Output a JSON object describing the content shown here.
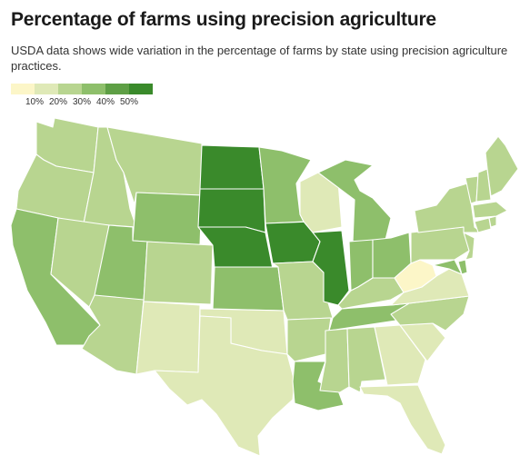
{
  "title": "Percentage of farms using precision agriculture",
  "subtitle": "USDA data shows wide variation in the percentage of farms by state using precision agriculture practices.",
  "legend": {
    "colors": [
      "#fcf6c8",
      "#dfe9b7",
      "#b8d590",
      "#8ebf6b",
      "#5e9f45",
      "#3a8a2b"
    ],
    "ticks": [
      "10%",
      "20%",
      "30%",
      "40%",
      "50%"
    ]
  },
  "map": {
    "states": [
      {
        "id": "WA",
        "value": 30
      },
      {
        "id": "OR",
        "value": 30
      },
      {
        "id": "CA",
        "value": 40
      },
      {
        "id": "ID",
        "value": 30
      },
      {
        "id": "NV",
        "value": 30
      },
      {
        "id": "MT",
        "value": 30
      },
      {
        "id": "WY",
        "value": 40
      },
      {
        "id": "UT",
        "value": 40
      },
      {
        "id": "AZ",
        "value": 30
      },
      {
        "id": "CO",
        "value": 30
      },
      {
        "id": "NM",
        "value": 20
      },
      {
        "id": "ND",
        "value": 50
      },
      {
        "id": "SD",
        "value": 50
      },
      {
        "id": "NE",
        "value": 50
      },
      {
        "id": "KS",
        "value": 40
      },
      {
        "id": "OK",
        "value": 20
      },
      {
        "id": "TX",
        "value": 20
      },
      {
        "id": "MN",
        "value": 40
      },
      {
        "id": "IA",
        "value": 50
      },
      {
        "id": "MO",
        "value": 30
      },
      {
        "id": "AR",
        "value": 30
      },
      {
        "id": "LA",
        "value": 40
      },
      {
        "id": "WI",
        "value": 20
      },
      {
        "id": "IL",
        "value": 50
      },
      {
        "id": "MI",
        "value": 40
      },
      {
        "id": "IN",
        "value": 40
      },
      {
        "id": "OH",
        "value": 40
      },
      {
        "id": "KY",
        "value": 30
      },
      {
        "id": "TN",
        "value": 40
      },
      {
        "id": "MS",
        "value": 30
      },
      {
        "id": "AL",
        "value": 30
      },
      {
        "id": "GA",
        "value": 20
      },
      {
        "id": "FL",
        "value": 20
      },
      {
        "id": "SC",
        "value": 20
      },
      {
        "id": "NC",
        "value": 30
      },
      {
        "id": "VA",
        "value": 20
      },
      {
        "id": "WV",
        "value": 10
      },
      {
        "id": "MD",
        "value": 40
      },
      {
        "id": "DE",
        "value": 40
      },
      {
        "id": "PA",
        "value": 30
      },
      {
        "id": "NJ",
        "value": 30
      },
      {
        "id": "NY",
        "value": 30
      },
      {
        "id": "CT",
        "value": 30
      },
      {
        "id": "RI",
        "value": 30
      },
      {
        "id": "MA",
        "value": 30
      },
      {
        "id": "VT",
        "value": 30
      },
      {
        "id": "NH",
        "value": 30
      },
      {
        "id": "ME",
        "value": 30
      }
    ]
  }
}
